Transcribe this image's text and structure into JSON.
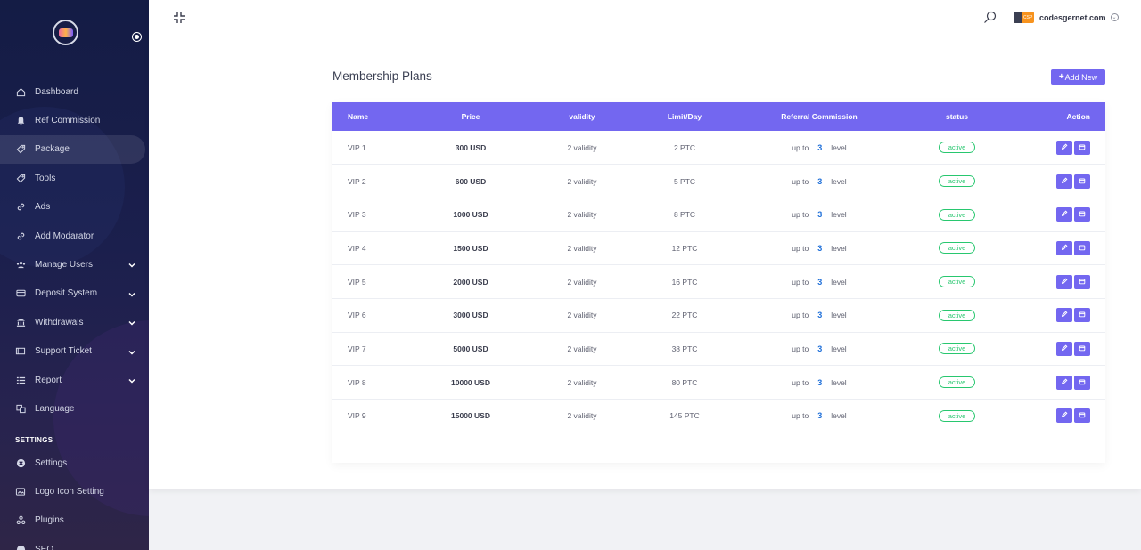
{
  "sidebar": {
    "items": [
      {
        "label": "Dashboard",
        "icon": "home-icon",
        "active": false,
        "has_caret": false
      },
      {
        "label": "Ref Commission",
        "icon": "bell-icon",
        "active": false,
        "has_caret": false
      },
      {
        "label": "Package",
        "icon": "tag-icon",
        "active": true,
        "has_caret": false
      },
      {
        "label": "Tools",
        "icon": "tag-icon",
        "active": false,
        "has_caret": false
      },
      {
        "label": "Ads",
        "icon": "link-icon",
        "active": false,
        "has_caret": false
      },
      {
        "label": "Add Modarator",
        "icon": "link-icon",
        "active": false,
        "has_caret": false
      },
      {
        "label": "Manage Users",
        "icon": "users-icon",
        "active": false,
        "has_caret": true
      },
      {
        "label": "Deposit System",
        "icon": "card-icon",
        "active": false,
        "has_caret": true
      },
      {
        "label": "Withdrawals",
        "icon": "bank-icon",
        "active": false,
        "has_caret": true
      },
      {
        "label": "Support Ticket",
        "icon": "ticket-icon",
        "active": false,
        "has_caret": true
      },
      {
        "label": "Report",
        "icon": "list-icon",
        "active": false,
        "has_caret": true
      },
      {
        "label": "Language",
        "icon": "language-icon",
        "active": false,
        "has_caret": false
      }
    ],
    "settings_label": "SETTINGS",
    "settings_items": [
      {
        "label": "Settings",
        "icon": "gear-icon"
      },
      {
        "label": "Logo Icon Setting",
        "icon": "image-icon"
      },
      {
        "label": "Plugins",
        "icon": "plugin-icon"
      },
      {
        "label": "SEO",
        "icon": "seo-icon"
      }
    ]
  },
  "header": {
    "user_name": "codesgernet.com",
    "user_logo_text": "CSP"
  },
  "page": {
    "title": "Membership Plans",
    "add_button": "Add New"
  },
  "table": {
    "columns": [
      "Name",
      "Price",
      "validity",
      "Limit/Day",
      "Referral Commission",
      "status",
      "Action"
    ],
    "rows": [
      {
        "name": "VIP 1",
        "price": "300 USD",
        "validity": "2 validity",
        "limit": "2 PTC",
        "ref_prefix": "up to",
        "ref_level": "3",
        "ref_suffix": "level",
        "status": "active"
      },
      {
        "name": "VIP 2",
        "price": "600 USD",
        "validity": "2 validity",
        "limit": "5 PTC",
        "ref_prefix": "up to",
        "ref_level": "3",
        "ref_suffix": "level",
        "status": "active"
      },
      {
        "name": "VIP 3",
        "price": "1000 USD",
        "validity": "2 validity",
        "limit": "8 PTC",
        "ref_prefix": "up to",
        "ref_level": "3",
        "ref_suffix": "level",
        "status": "active"
      },
      {
        "name": "VIP 4",
        "price": "1500 USD",
        "validity": "2 validity",
        "limit": "12 PTC",
        "ref_prefix": "up to",
        "ref_level": "3",
        "ref_suffix": "level",
        "status": "active"
      },
      {
        "name": "VIP 5",
        "price": "2000 USD",
        "validity": "2 validity",
        "limit": "16 PTC",
        "ref_prefix": "up to",
        "ref_level": "3",
        "ref_suffix": "level",
        "status": "active"
      },
      {
        "name": "VIP 6",
        "price": "3000 USD",
        "validity": "2 validity",
        "limit": "22 PTC",
        "ref_prefix": "up to",
        "ref_level": "3",
        "ref_suffix": "level",
        "status": "active"
      },
      {
        "name": "VIP 7",
        "price": "5000 USD",
        "validity": "2 validity",
        "limit": "38 PTC",
        "ref_prefix": "up to",
        "ref_level": "3",
        "ref_suffix": "level",
        "status": "active"
      },
      {
        "name": "VIP 8",
        "price": "10000 USD",
        "validity": "2 validity",
        "limit": "80 PTC",
        "ref_prefix": "up to",
        "ref_level": "3",
        "ref_suffix": "level",
        "status": "active"
      },
      {
        "name": "VIP 9",
        "price": "15000 USD",
        "validity": "2 validity",
        "limit": "145 PTC",
        "ref_prefix": "up to",
        "ref_level": "3",
        "ref_suffix": "level",
        "status": "active"
      }
    ]
  },
  "colors": {
    "accent": "#7367f0",
    "status_active": "#28c76f",
    "level_number": "#1e6fd9",
    "sidebar_bg": "#141c45"
  }
}
